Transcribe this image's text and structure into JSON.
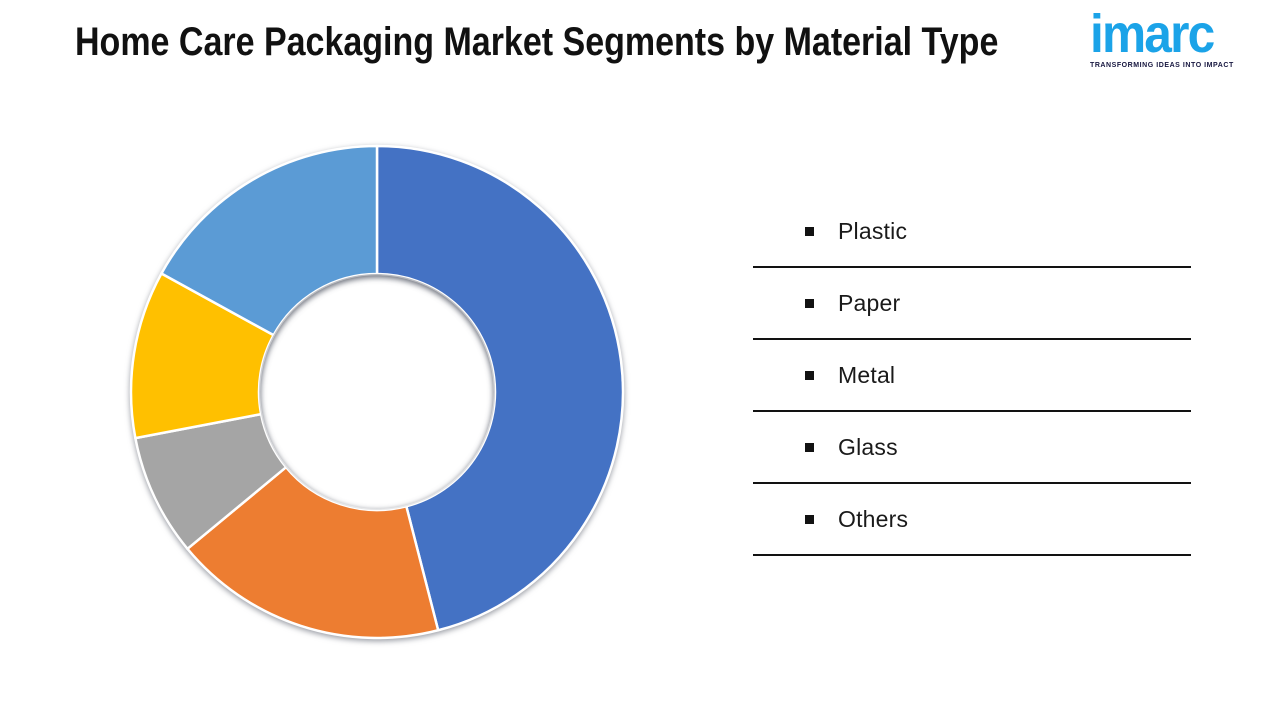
{
  "header": {
    "title": "Home Care Packaging Market Segments by Material Type",
    "logo": {
      "brand": "imarc",
      "tagline": "TRANSFORMING IDEAS INTO IMPACT",
      "brand_color": "#1BA3E8",
      "tagline_color": "#16163F"
    }
  },
  "chart_data": {
    "type": "pie",
    "subtype": "donut",
    "title": "Home Care Packaging Market Segments by Material Type",
    "categories": [
      "Plastic",
      "Paper",
      "Metal",
      "Glass",
      "Others"
    ],
    "values": [
      46,
      18,
      8,
      11,
      17
    ],
    "values_unit": "percent-share-estimated-from-arc-angles",
    "value_labels_shown": false,
    "colors": [
      "#4472C4",
      "#ED7D31",
      "#A5A5A5",
      "#FFC000",
      "#5B9BD5"
    ],
    "start_angle_deg": 0,
    "direction": "clockwise",
    "donut_hole_ratio": 0.48,
    "slice_border_color": "#FFFFFF",
    "legend_position": "right",
    "legend_bullet": "black-square"
  }
}
